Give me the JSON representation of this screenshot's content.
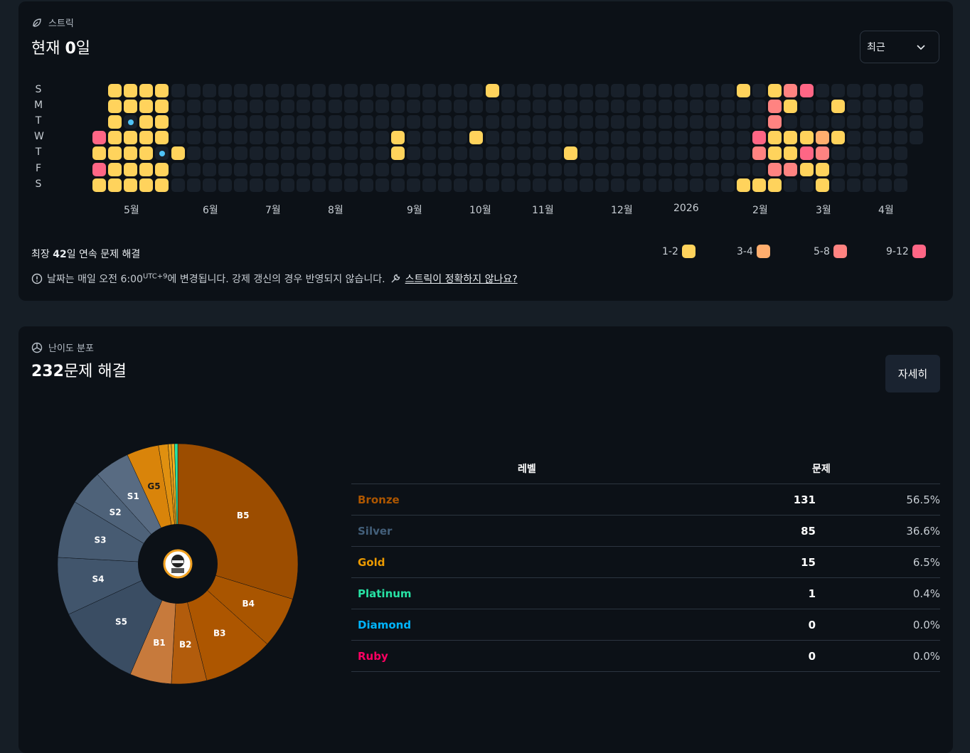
{
  "streak": {
    "section_label": "스트릭",
    "title_prefix": "현재 ",
    "title_value": "0",
    "title_suffix": "일",
    "dropdown_value": "최근",
    "day_labels": [
      "S",
      "M",
      "T",
      "W",
      "T",
      "F",
      "S"
    ],
    "months": [
      "5월",
      "6월",
      "7월",
      "8월",
      "9월",
      "10월",
      "11월",
      "12월",
      "2026",
      "2월",
      "3월",
      "4월"
    ],
    "weeks": 53,
    "last_week_days": 4,
    "active": [
      {
        "w": 1,
        "d": 0,
        "l": 1
      },
      {
        "w": 2,
        "d": 0,
        "l": 1
      },
      {
        "w": 3,
        "d": 0,
        "l": 1
      },
      {
        "w": 4,
        "d": 0,
        "l": 1
      },
      {
        "w": 1,
        "d": 1,
        "l": 1
      },
      {
        "w": 2,
        "d": 1,
        "l": 1
      },
      {
        "w": 3,
        "d": 1,
        "l": 1
      },
      {
        "w": 4,
        "d": 1,
        "l": 1
      },
      {
        "w": 1,
        "d": 2,
        "l": 1
      },
      {
        "w": 2,
        "d": 2,
        "l": 0,
        "dot": true
      },
      {
        "w": 3,
        "d": 2,
        "l": 1
      },
      {
        "w": 4,
        "d": 2,
        "l": 1
      },
      {
        "w": 0,
        "d": 3,
        "l": 4
      },
      {
        "w": 1,
        "d": 3,
        "l": 1
      },
      {
        "w": 2,
        "d": 3,
        "l": 1
      },
      {
        "w": 3,
        "d": 3,
        "l": 1
      },
      {
        "w": 4,
        "d": 3,
        "l": 1
      },
      {
        "w": 0,
        "d": 4,
        "l": 1
      },
      {
        "w": 1,
        "d": 4,
        "l": 1
      },
      {
        "w": 2,
        "d": 4,
        "l": 1
      },
      {
        "w": 3,
        "d": 4,
        "l": 1
      },
      {
        "w": 4,
        "d": 4,
        "l": 0,
        "dot": true
      },
      {
        "w": 5,
        "d": 4,
        "l": 1
      },
      {
        "w": 0,
        "d": 5,
        "l": 4
      },
      {
        "w": 1,
        "d": 5,
        "l": 1
      },
      {
        "w": 2,
        "d": 5,
        "l": 1
      },
      {
        "w": 3,
        "d": 5,
        "l": 1
      },
      {
        "w": 4,
        "d": 5,
        "l": 1
      },
      {
        "w": 0,
        "d": 6,
        "l": 1
      },
      {
        "w": 1,
        "d": 6,
        "l": 1
      },
      {
        "w": 2,
        "d": 6,
        "l": 1
      },
      {
        "w": 3,
        "d": 6,
        "l": 1
      },
      {
        "w": 4,
        "d": 6,
        "l": 1
      },
      {
        "w": 25,
        "d": 0,
        "l": 1
      },
      {
        "w": 19,
        "d": 3,
        "l": 1
      },
      {
        "w": 19,
        "d": 4,
        "l": 1
      },
      {
        "w": 24,
        "d": 3,
        "l": 1
      },
      {
        "w": 30,
        "d": 4,
        "l": 1
      },
      {
        "w": 41,
        "d": 0,
        "l": 1
      },
      {
        "w": 43,
        "d": 0,
        "l": 1
      },
      {
        "w": 44,
        "d": 0,
        "l": 3
      },
      {
        "w": 45,
        "d": 0,
        "l": 4
      },
      {
        "w": 43,
        "d": 1,
        "l": 3
      },
      {
        "w": 44,
        "d": 1,
        "l": 1
      },
      {
        "w": 47,
        "d": 1,
        "l": 1
      },
      {
        "w": 43,
        "d": 2,
        "l": 3
      },
      {
        "w": 42,
        "d": 3,
        "l": 4
      },
      {
        "w": 43,
        "d": 3,
        "l": 1
      },
      {
        "w": 44,
        "d": 3,
        "l": 1
      },
      {
        "w": 45,
        "d": 3,
        "l": 1
      },
      {
        "w": 46,
        "d": 3,
        "l": 2
      },
      {
        "w": 47,
        "d": 3,
        "l": 1
      },
      {
        "w": 42,
        "d": 4,
        "l": 3
      },
      {
        "w": 43,
        "d": 4,
        "l": 1
      },
      {
        "w": 44,
        "d": 4,
        "l": 1
      },
      {
        "w": 45,
        "d": 4,
        "l": 4
      },
      {
        "w": 46,
        "d": 4,
        "l": 3
      },
      {
        "w": 43,
        "d": 5,
        "l": 3
      },
      {
        "w": 44,
        "d": 5,
        "l": 3
      },
      {
        "w": 45,
        "d": 5,
        "l": 1
      },
      {
        "w": 46,
        "d": 5,
        "l": 1
      },
      {
        "w": 41,
        "d": 6,
        "l": 1
      },
      {
        "w": 42,
        "d": 6,
        "l": 1
      },
      {
        "w": 43,
        "d": 6,
        "l": 1
      },
      {
        "w": 46,
        "d": 6,
        "l": 1
      }
    ],
    "longest_prefix": "최장 ",
    "longest_value": "42",
    "longest_suffix": "일 연속 문제 해결",
    "legend": [
      {
        "label": "1-2",
        "color": "#ffd35c"
      },
      {
        "label": "3-4",
        "color": "#ffae6e"
      },
      {
        "label": "5-8",
        "color": "#ff8381"
      },
      {
        "label": "9-12",
        "color": "#ff6685"
      }
    ],
    "note_text": "날짜는 매일 오전 6:00",
    "note_sup": "UTC+9",
    "note_text2": "에 변경됩니다. 강제 갱신의 경우 반영되지 않습니다.",
    "note_link": "스트릭이 정확하지 않나요?"
  },
  "distribution": {
    "section_label": "난이도 분포",
    "title_value": "232",
    "title_suffix": "문제 해결",
    "detail_button": "자세히",
    "pie": [
      {
        "label": "B5",
        "value": 69,
        "color": "#9c4d00"
      },
      {
        "label": "B4",
        "value": 16,
        "color": "#a95500"
      },
      {
        "label": "B3",
        "value": 22,
        "color": "#ad5600"
      },
      {
        "label": "B2",
        "value": 11,
        "color": "#b25c0c"
      },
      {
        "label": "B1",
        "value": 13,
        "color": "#c77a3c"
      },
      {
        "label": "S5",
        "value": 27,
        "color": "#3a4d63"
      },
      {
        "label": "S4",
        "value": 18,
        "color": "#41556c"
      },
      {
        "label": "S3",
        "value": 18,
        "color": "#475b72"
      },
      {
        "label": "S2",
        "value": 11,
        "color": "#4e6279"
      },
      {
        "label": "S1",
        "value": 11,
        "color": "#586b82"
      },
      {
        "label": "G5",
        "value": 10,
        "color": "#d9840a"
      },
      {
        "label": "",
        "value": 3,
        "color": "#e09010"
      },
      {
        "label": "",
        "value": 1,
        "color": "#eca018"
      },
      {
        "label": "",
        "value": 1,
        "color": "#f2b020"
      },
      {
        "label": "",
        "value": 1,
        "color": "#27e2a4"
      }
    ],
    "table": {
      "headers": [
        "레벨",
        "문제"
      ],
      "rows": [
        {
          "tier": "Bronze",
          "count": "131",
          "pct": "56.5%",
          "color": "#ad5600"
        },
        {
          "tier": "Silver",
          "count": "85",
          "pct": "36.6%",
          "color": "#435f7a"
        },
        {
          "tier": "Gold",
          "count": "15",
          "pct": "6.5%",
          "color": "#ec9a00"
        },
        {
          "tier": "Platinum",
          "count": "1",
          "pct": "0.4%",
          "color": "#27e2a4"
        },
        {
          "tier": "Diamond",
          "count": "0",
          "pct": "0.0%",
          "color": "#00b4fc"
        },
        {
          "tier": "Ruby",
          "count": "0",
          "pct": "0.0%",
          "color": "#ff0062"
        }
      ]
    }
  }
}
